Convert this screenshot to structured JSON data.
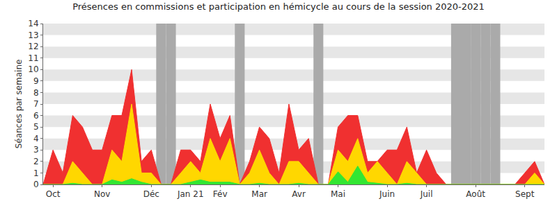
{
  "chart_data": {
    "type": "area",
    "title": "Présences en commissions et participation en hémicycle au cours de la session 2020-2021",
    "y_label": "Séances par semaine",
    "categories": [
      null,
      "Oct",
      null,
      null,
      null,
      null,
      "Nov",
      null,
      null,
      null,
      null,
      "Déc",
      null,
      null,
      null,
      "Jan 21",
      null,
      null,
      "Fév",
      null,
      null,
      null,
      "Mar",
      null,
      null,
      null,
      "Avr",
      null,
      null,
      null,
      "Mai",
      null,
      null,
      null,
      null,
      "Juin",
      null,
      null,
      null,
      "Juil",
      null,
      null,
      null,
      null,
      "Août",
      null,
      null,
      null,
      null,
      "Sept",
      null,
      null
    ],
    "series": [
      {
        "color": "#f03030",
        "values": [
          0,
          3,
          1,
          6,
          5,
          3,
          3,
          6,
          6,
          10,
          2,
          3,
          0,
          0,
          3,
          3,
          2,
          7,
          4,
          6,
          0,
          2,
          5,
          4,
          1,
          7,
          3,
          4,
          0,
          0,
          5,
          6,
          6,
          2,
          2,
          3,
          3,
          5,
          1,
          3,
          1,
          0,
          0,
          0,
          0,
          0,
          0,
          0,
          0,
          1,
          2,
          0
        ]
      },
      {
        "color": "#ffd700",
        "values": [
          0,
          0,
          0,
          2,
          1,
          0,
          0,
          3,
          2,
          7,
          1,
          1,
          0,
          0,
          1,
          2,
          1,
          4,
          2,
          4,
          0,
          1,
          3,
          1,
          0,
          2,
          2,
          1,
          0,
          0,
          3,
          2,
          4,
          1,
          2,
          1,
          0,
          2,
          1,
          0,
          0,
          0,
          0,
          0,
          0,
          0,
          0,
          0,
          0,
          0,
          1,
          0
        ]
      },
      {
        "color": "#33e633",
        "values": [
          0,
          0,
          0,
          0.1,
          0,
          0,
          0,
          0.4,
          0.2,
          0.5,
          0.2,
          0,
          0,
          0,
          0,
          0.2,
          0.4,
          0.2,
          0.2,
          0.2,
          0,
          0,
          0.1,
          0,
          0,
          0,
          0.1,
          0,
          0,
          0,
          1.1,
          0.2,
          1.6,
          0.2,
          0.1,
          0,
          0,
          0.1,
          0,
          0,
          0,
          0,
          0,
          0,
          0,
          0,
          0,
          0,
          0,
          0,
          0,
          0
        ]
      }
    ],
    "holiday_weeks": [
      12,
      13,
      20,
      28,
      42,
      43,
      44,
      45,
      46
    ],
    "ylim": [
      0,
      14
    ],
    "yticks": [
      0,
      1,
      2,
      3,
      4,
      5,
      6,
      7,
      8,
      9,
      10,
      11,
      12,
      13,
      14
    ],
    "grid": true
  }
}
